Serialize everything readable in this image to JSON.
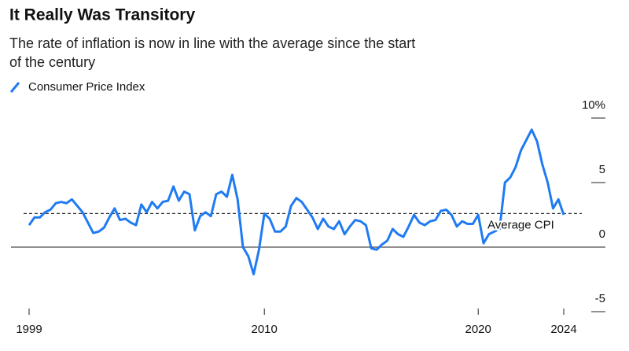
{
  "chart_data": {
    "type": "line",
    "title": "It Really Was Transitory",
    "subtitle": "The rate of inflation is now in line with the average since the start of the century",
    "x": [
      1999,
      1999.25,
      1999.5,
      1999.75,
      2000,
      2000.25,
      2000.5,
      2000.75,
      2001,
      2001.25,
      2001.5,
      2001.75,
      2002,
      2002.25,
      2002.5,
      2002.75,
      2003,
      2003.25,
      2003.5,
      2003.75,
      2004,
      2004.25,
      2004.5,
      2004.75,
      2005,
      2005.25,
      2005.5,
      2005.75,
      2006,
      2006.25,
      2006.5,
      2006.75,
      2007,
      2007.25,
      2007.5,
      2007.75,
      2008,
      2008.25,
      2008.5,
      2008.75,
      2009,
      2009.25,
      2009.5,
      2009.75,
      2010,
      2010.25,
      2010.5,
      2010.75,
      2011,
      2011.25,
      2011.5,
      2011.75,
      2012,
      2012.25,
      2012.5,
      2012.75,
      2013,
      2013.25,
      2013.5,
      2013.75,
      2014,
      2014.25,
      2014.5,
      2014.75,
      2015,
      2015.25,
      2015.5,
      2015.75,
      2016,
      2016.25,
      2016.5,
      2016.75,
      2017,
      2017.25,
      2017.5,
      2017.75,
      2018,
      2018.25,
      2018.5,
      2018.75,
      2019,
      2019.25,
      2019.5,
      2019.75,
      2020,
      2020.25,
      2020.5,
      2020.75,
      2021,
      2021.25,
      2021.5,
      2021.75,
      2022,
      2022.25,
      2022.5,
      2022.75,
      2023,
      2023.25,
      2023.5,
      2023.75,
      2024
    ],
    "series": [
      {
        "name": "Consumer Price Index",
        "color": "#1f7bf2",
        "values": [
          1.7,
          2.3,
          2.3,
          2.7,
          2.9,
          3.4,
          3.5,
          3.4,
          3.7,
          3.2,
          2.7,
          1.9,
          1.1,
          1.2,
          1.5,
          2.3,
          3.0,
          2.1,
          2.2,
          1.9,
          1.7,
          3.3,
          2.7,
          3.5,
          3.0,
          3.5,
          3.6,
          4.7,
          3.6,
          4.3,
          4.1,
          1.3,
          2.4,
          2.7,
          2.4,
          4.1,
          4.3,
          3.9,
          5.6,
          3.7,
          0.0,
          -0.7,
          -2.1,
          -0.2,
          2.6,
          2.2,
          1.2,
          1.2,
          1.6,
          3.2,
          3.8,
          3.5,
          2.9,
          2.3,
          1.4,
          2.2,
          1.6,
          1.4,
          2.0,
          1.0,
          1.6,
          2.1,
          2.0,
          1.7,
          -0.1,
          -0.2,
          0.2,
          0.5,
          1.4,
          1.0,
          0.8,
          1.6,
          2.5,
          1.9,
          1.7,
          2.0,
          2.1,
          2.8,
          2.9,
          2.5,
          1.6,
          2.0,
          1.8,
          1.8,
          2.5,
          0.3,
          1.0,
          1.2,
          1.4,
          5.0,
          5.4,
          6.2,
          7.5,
          8.3,
          9.1,
          8.2,
          6.4,
          5.0,
          3.0,
          3.7,
          2.5
        ]
      }
    ],
    "reference_line": {
      "label": "Average CPI",
      "value": 2.6
    },
    "xlim": [
      1999,
      2024
    ],
    "xticks": [
      1999,
      2010,
      2020,
      2024
    ],
    "ylim": [
      -5,
      10
    ],
    "yticks": [
      -5,
      0,
      5,
      {
        "value": 10,
        "label": "10%"
      }
    ]
  }
}
